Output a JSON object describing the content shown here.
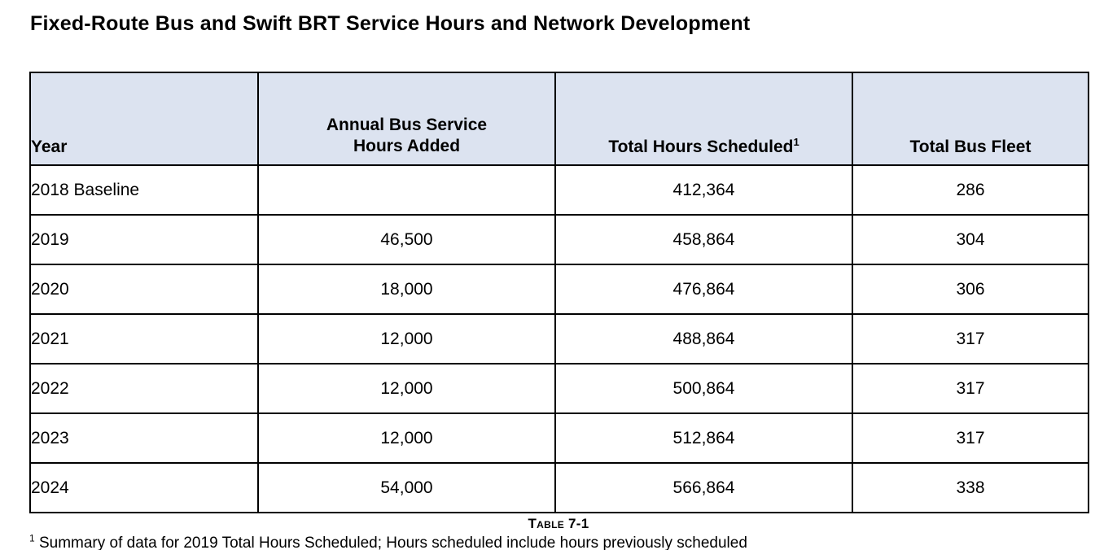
{
  "page": {
    "title": "Fixed-Route Bus and Swift BRT Service Hours and Network Development"
  },
  "table": {
    "caption": "Table 7-1",
    "header": {
      "year": "Year",
      "hours_added_line1": "Annual Bus Service",
      "hours_added_line2": "Hours Added",
      "total_hours": "Total Hours Scheduled",
      "total_hours_sup": "1",
      "total_fleet": "Total Bus Fleet"
    },
    "rows": [
      {
        "year": "2018 Baseline",
        "hours_added": "",
        "hours_added_shaded": true,
        "total_hours": "412,364",
        "fleet": "286"
      },
      {
        "year": "2019",
        "hours_added": "46,500",
        "hours_added_shaded": false,
        "total_hours": "458,864",
        "fleet": "304"
      },
      {
        "year": "2020",
        "hours_added": "18,000",
        "hours_added_shaded": false,
        "total_hours": "476,864",
        "fleet": "306"
      },
      {
        "year": "2021",
        "hours_added": "12,000",
        "hours_added_shaded": false,
        "total_hours": "488,864",
        "fleet": "317"
      },
      {
        "year": "2022",
        "hours_added": "12,000",
        "hours_added_shaded": false,
        "total_hours": "500,864",
        "fleet": "317"
      },
      {
        "year": "2023",
        "hours_added": "12,000",
        "hours_added_shaded": false,
        "total_hours": "512,864",
        "fleet": "317"
      },
      {
        "year": "2024",
        "hours_added": "54,000",
        "hours_added_shaded": false,
        "total_hours": "566,864",
        "fleet": "338"
      }
    ]
  },
  "footnote": {
    "marker": "1",
    "text": " Summary of data for 2019 Total Hours Scheduled; Hours scheduled include hours previously scheduled"
  },
  "colors": {
    "header_bg": "#dce3f0",
    "shaded_cell": "#d9d9d9",
    "border": "#000000"
  }
}
